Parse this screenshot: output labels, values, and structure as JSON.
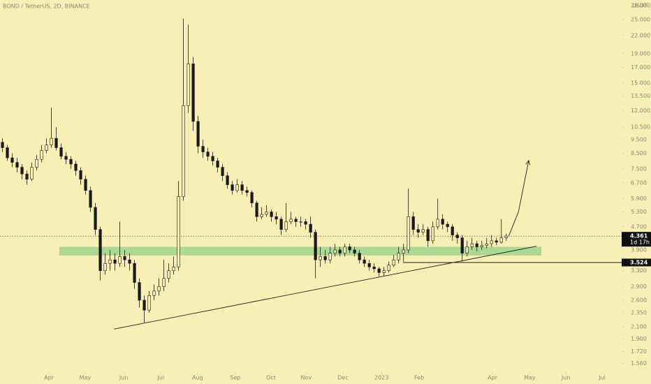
{
  "chart_data": {
    "type": "candlestick",
    "title": "BOND / TetherUS, 2D, BINANCE",
    "currency": "USDT",
    "log_scale": true,
    "up_color": "#f8efb6",
    "down_color": "#1a1a1a",
    "outline_color": "#1a1a1a",
    "xlim": [
      0,
      127.1
    ],
    "ylim": [
      1.48,
      29.3
    ],
    "yticks": [
      {
        "value": 28,
        "label": "28.000"
      },
      {
        "value": 25,
        "label": "25.000"
      },
      {
        "value": 22,
        "label": "22.000"
      },
      {
        "value": 19,
        "label": "19.000"
      },
      {
        "value": 17,
        "label": "17.000"
      },
      {
        "value": 15,
        "label": "15.000"
      },
      {
        "value": 13.5,
        "label": "13.500"
      },
      {
        "value": 12,
        "label": "12.000"
      },
      {
        "value": 10.5,
        "label": "10.500"
      },
      {
        "value": 9.5,
        "label": "9.500"
      },
      {
        "value": 8.5,
        "label": "8.500"
      },
      {
        "value": 7.5,
        "label": "7.500"
      },
      {
        "value": 6.7,
        "label": "6.700"
      },
      {
        "value": 5.9,
        "label": "5.900"
      },
      {
        "value": 5.3,
        "label": "5.300"
      },
      {
        "value": 4.7,
        "label": "4.700"
      },
      {
        "value": 3.9,
        "label": "3.900"
      },
      {
        "value": 3.3,
        "label": "3.300"
      },
      {
        "value": 2.9,
        "label": "2.900"
      },
      {
        "value": 2.6,
        "label": "2.600"
      },
      {
        "value": 2.35,
        "label": "2.350"
      },
      {
        "value": 2.1,
        "label": "2.100"
      },
      {
        "value": 1.9,
        "label": "1.900"
      },
      {
        "value": 1.72,
        "label": "1.720"
      },
      {
        "value": 1.56,
        "label": "1.560"
      }
    ],
    "xticks": [
      {
        "value": 10,
        "label": "Apr"
      },
      {
        "value": 17.4,
        "label": "May"
      },
      {
        "value": 25.3,
        "label": "Jun"
      },
      {
        "value": 32.9,
        "label": "Jul"
      },
      {
        "value": 40.4,
        "label": "Aug"
      },
      {
        "value": 48.1,
        "label": "Sep"
      },
      {
        "value": 55.4,
        "label": "Oct"
      },
      {
        "value": 62.6,
        "label": "Nov"
      },
      {
        "value": 70.1,
        "label": "Dec"
      },
      {
        "value": 78,
        "label": "2023"
      },
      {
        "value": 85.7,
        "label": "Feb"
      },
      {
        "value": 100.7,
        "label": "Apr"
      },
      {
        "value": 108.3,
        "label": "May"
      },
      {
        "value": 115.7,
        "label": "Jun"
      },
      {
        "value": 123.1,
        "label": "Jul"
      }
    ],
    "open": [
      9.3,
      8.9,
      8.2,
      7.9,
      7.6,
      7.2,
      6.9,
      7.6,
      8.1,
      8.7,
      9.1,
      9.6,
      8.9,
      8.3,
      8.1,
      7.8,
      7.4,
      6.9,
      6.3,
      5.5,
      4.6,
      3.3,
      3.5,
      3.6,
      3.5,
      3.7,
      3.6,
      3.5,
      3.0,
      2.6,
      2.4,
      2.7,
      2.8,
      2.9,
      3.1,
      3.3,
      3.4,
      6.0,
      12.5,
      17.5,
      11.0,
      9.0,
      8.6,
      8.3,
      8.0,
      7.6,
      7.1,
      6.6,
      6.3,
      6.6,
      6.3,
      6.2,
      5.7,
      5.1,
      5.2,
      5.3,
      5.1,
      5.0,
      4.6,
      4.9,
      5.0,
      4.9,
      4.9,
      4.8,
      4.5,
      3.6,
      3.7,
      3.6,
      3.8,
      3.9,
      3.8,
      4.0,
      3.9,
      3.8,
      3.6,
      3.5,
      3.4,
      3.35,
      3.25,
      3.3,
      3.45,
      3.6,
      3.8,
      3.9,
      5.1,
      4.6,
      4.5,
      4.6,
      4.2,
      4.7,
      5.0,
      4.8,
      4.7,
      4.4,
      4.3,
      3.8,
      4.0,
      4.1,
      4.0,
      4.05,
      4.1,
      4.2,
      4.15,
      4.3
    ],
    "high": [
      9.6,
      9.1,
      8.5,
      8.2,
      7.8,
      7.4,
      7.9,
      8.4,
      9.1,
      9.6,
      12.3,
      10.5,
      9.2,
      8.6,
      8.3,
      8.0,
      7.6,
      7.1,
      6.5,
      5.7,
      4.7,
      3.8,
      3.9,
      3.8,
      4.9,
      3.9,
      3.8,
      3.6,
      3.1,
      2.7,
      2.8,
      2.95,
      3.1,
      3.6,
      3.5,
      3.7,
      6.8,
      25.2,
      24.0,
      18.5,
      11.5,
      9.5,
      8.9,
      8.6,
      8.2,
      7.8,
      7.3,
      6.8,
      6.9,
      6.8,
      6.5,
      6.3,
      5.8,
      5.5,
      5.6,
      5.4,
      5.3,
      5.1,
      5.7,
      5.3,
      5.1,
      5.1,
      5.0,
      5.1,
      4.6,
      4.0,
      3.9,
      4.0,
      4.1,
      4.0,
      4.1,
      4.1,
      4.0,
      3.9,
      3.7,
      3.6,
      3.5,
      3.4,
      3.4,
      3.55,
      3.75,
      4.0,
      4.1,
      6.4,
      5.3,
      4.8,
      4.8,
      4.7,
      4.9,
      5.9,
      5.2,
      4.9,
      4.8,
      4.5,
      4.4,
      4.2,
      4.3,
      4.2,
      4.2,
      4.3,
      4.4,
      4.3,
      5.0,
      4.45
    ],
    "low": [
      8.6,
      8.0,
      7.6,
      7.3,
      6.9,
      6.6,
      6.8,
      7.4,
      7.9,
      8.5,
      8.9,
      8.7,
      8.1,
      7.8,
      7.5,
      7.1,
      6.6,
      6.1,
      5.3,
      4.4,
      3.05,
      3.2,
      3.3,
      3.3,
      3.4,
      3.4,
      3.3,
      2.85,
      2.45,
      2.17,
      2.35,
      2.6,
      2.7,
      2.8,
      3.0,
      3.2,
      3.3,
      5.8,
      11.8,
      10.2,
      8.5,
      8.2,
      8.0,
      7.7,
      7.3,
      6.8,
      6.4,
      6.1,
      6.2,
      6.1,
      6.0,
      5.5,
      4.9,
      5.0,
      5.1,
      4.9,
      4.8,
      4.4,
      4.5,
      4.8,
      4.7,
      4.7,
      4.6,
      4.3,
      3.1,
      3.4,
      3.5,
      3.5,
      3.7,
      3.7,
      3.7,
      3.8,
      3.7,
      3.5,
      3.4,
      3.3,
      3.25,
      3.15,
      3.15,
      3.25,
      3.4,
      3.5,
      3.55,
      3.8,
      4.4,
      4.3,
      4.4,
      4.0,
      4.1,
      4.6,
      4.6,
      4.5,
      4.2,
      4.1,
      3.55,
      3.7,
      3.9,
      3.85,
      3.9,
      3.95,
      4.0,
      4.05,
      4.1,
      4.2
    ],
    "close": [
      8.9,
      8.2,
      7.9,
      7.6,
      7.2,
      6.9,
      7.6,
      8.1,
      8.7,
      9.1,
      9.6,
      8.9,
      8.3,
      8.1,
      7.8,
      7.4,
      6.9,
      6.3,
      5.5,
      4.6,
      3.3,
      3.5,
      3.6,
      3.5,
      3.7,
      3.6,
      3.5,
      3.0,
      2.6,
      2.4,
      2.7,
      2.8,
      2.9,
      3.1,
      3.3,
      3.4,
      6.0,
      12.5,
      17.5,
      11.0,
      9.0,
      8.6,
      8.3,
      8.0,
      7.6,
      7.1,
      6.6,
      6.3,
      6.6,
      6.3,
      6.2,
      5.7,
      5.1,
      5.2,
      5.3,
      5.1,
      5.0,
      4.6,
      4.9,
      5.0,
      4.9,
      4.9,
      4.8,
      4.5,
      3.6,
      3.7,
      3.6,
      3.8,
      3.9,
      3.8,
      4.0,
      3.9,
      3.8,
      3.6,
      3.5,
      3.4,
      3.35,
      3.25,
      3.3,
      3.45,
      3.6,
      3.8,
      3.9,
      5.1,
      4.6,
      4.5,
      4.6,
      4.2,
      4.7,
      5.0,
      4.8,
      4.7,
      4.4,
      4.3,
      3.8,
      4.0,
      4.1,
      4.0,
      4.05,
      4.1,
      4.2,
      4.15,
      4.3,
      4.361
    ],
    "last_price": 4.361,
    "countdown": "1d 17h",
    "support_line": {
      "price": 3.524,
      "x": 82.4
    },
    "zone": {
      "x": [
        12.1,
        110.7
      ],
      "price": [
        3.73,
        4.0
      ],
      "color": "#9fd48d"
    },
    "trendline": {
      "x": [
        23.3,
        109.7
      ],
      "price": [
        2.06,
        4.02
      ]
    },
    "arrow": {
      "x": [
        104,
        106,
        108.1
      ],
      "price": [
        4.36,
        5.3,
        8.03
      ]
    }
  }
}
